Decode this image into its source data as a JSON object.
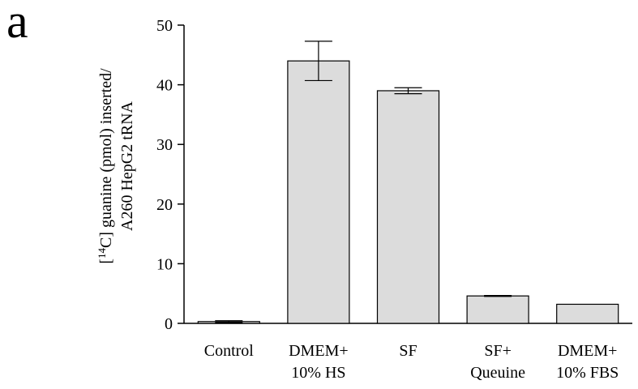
{
  "panel_label": "a",
  "chart_data": {
    "type": "bar",
    "categories": [
      [
        "Control"
      ],
      [
        "DMEM+",
        "10% HS"
      ],
      [
        "SF"
      ],
      [
        "SF+",
        "Queuine"
      ],
      [
        "DMEM+",
        "10% FBS"
      ]
    ],
    "values": [
      0.3,
      44.0,
      39.0,
      4.6,
      3.2
    ],
    "errors": [
      0.15,
      3.3,
      0.5,
      0.08,
      0
    ],
    "ylabel_lines": [
      "[{sup}C] guanine (pmol) inserted/",
      "A260 HepG2 tRNA"
    ],
    "ylabel_superscript": "14",
    "ylim": [
      0,
      50
    ],
    "yticks": [
      0,
      10,
      20,
      30,
      40,
      50
    ],
    "grid": false,
    "colors": {
      "bar_fill": "#dcdcdc",
      "bar_stroke": "#000000",
      "axis": "#000000"
    }
  }
}
